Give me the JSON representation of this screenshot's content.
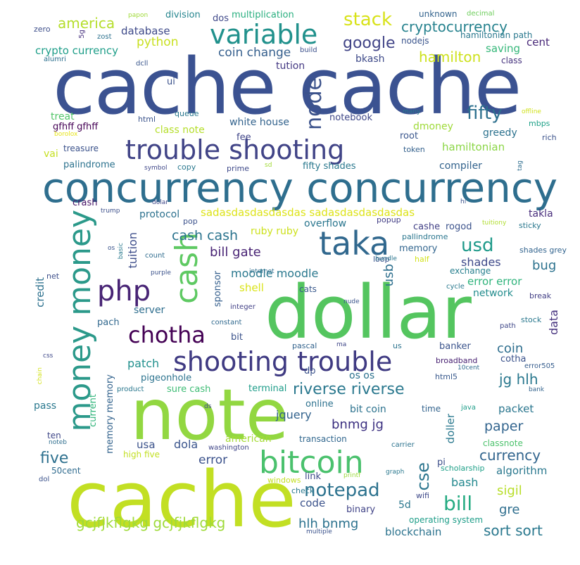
{
  "words": [
    {
      "text": "cache cache",
      "color": "#3b5291"
    },
    {
      "text": "concurrency concurrency",
      "color": "#2e6e8e"
    },
    {
      "text": "dollar",
      "color": "#54c55f"
    },
    {
      "text": "note",
      "color": "#92d741"
    },
    {
      "text": "cache",
      "color": "#c2df23"
    },
    {
      "text": "trouble shooting",
      "color": "#414487"
    },
    {
      "text": "shooting trouble",
      "color": "#3f3a82"
    },
    {
      "text": "variable",
      "color": "#21918c"
    },
    {
      "text": "money money",
      "color": "#2b998a"
    },
    {
      "text": "taka",
      "color": "#31688e"
    },
    {
      "text": "php",
      "color": "#482475"
    },
    {
      "text": "cash",
      "color": "#5ec962"
    },
    {
      "text": "bitcoin",
      "color": "#4ac16d"
    },
    {
      "text": "chotha",
      "color": "#440154"
    },
    {
      "text": "note",
      "color": "#2c728e"
    },
    {
      "text": "node",
      "color": "#3b528b"
    },
    {
      "text": "stack",
      "color": "#d8e219"
    },
    {
      "text": "cryptocurrency",
      "color": "#26828e"
    },
    {
      "text": "google",
      "color": "#414487"
    },
    {
      "text": "hamilton",
      "color": "#cde11d"
    },
    {
      "text": "america",
      "color": "#b5de2b"
    },
    {
      "text": "database",
      "color": "#3e4a89"
    },
    {
      "text": "python",
      "color": "#c8e020"
    },
    {
      "text": "crypto currency",
      "color": "#1f9e89"
    },
    {
      "text": "coin change",
      "color": "#355f8d"
    },
    {
      "text": "bkash",
      "color": "#3e4a89"
    },
    {
      "text": "tution",
      "color": "#443983"
    },
    {
      "text": "saving",
      "color": "#35b779"
    },
    {
      "text": "cent",
      "color": "#482878"
    },
    {
      "text": "division",
      "color": "#25858e"
    },
    {
      "text": "dos",
      "color": "#3f4889"
    },
    {
      "text": "multiplication",
      "color": "#29af7f"
    },
    {
      "text": "unknown",
      "color": "#33638d"
    },
    {
      "text": "decimal",
      "color": "#6ccd5a"
    },
    {
      "text": "hamiltonian path",
      "color": "#2a788e"
    },
    {
      "text": "nodejs",
      "color": "#3a548c"
    },
    {
      "text": "class",
      "color": "#46337e"
    },
    {
      "text": "papon",
      "color": "#a0da39"
    },
    {
      "text": "zero",
      "color": "#3d4e8a"
    },
    {
      "text": "zost",
      "color": "#2c718e"
    },
    {
      "text": "5g",
      "color": "#46307e"
    },
    {
      "text": "build",
      "color": "#3c508b"
    },
    {
      "text": "alumri",
      "color": "#2d708e"
    },
    {
      "text": "dcll",
      "color": "#39568c"
    },
    {
      "text": "ui",
      "color": "#3b528b"
    },
    {
      "text": "fifty",
      "color": "#2d708e"
    },
    {
      "text": "treat",
      "color": "#52c569"
    },
    {
      "text": "gfhff gfhff",
      "color": "#440154"
    },
    {
      "text": "html",
      "color": "#3a538b"
    },
    {
      "text": "queue",
      "color": "#2a788e"
    },
    {
      "text": "class note",
      "color": "#b5de2b"
    },
    {
      "text": "white house",
      "color": "#33638d"
    },
    {
      "text": "notebook",
      "color": "#3f4788"
    },
    {
      "text": "dmoney",
      "color": "#9fda3a"
    },
    {
      "text": "many",
      "color": "#287c8e"
    },
    {
      "text": "offline",
      "color": "#d0e11c"
    },
    {
      "text": "mbps",
      "color": "#1fa188"
    },
    {
      "text": "greedy",
      "color": "#2c728e"
    },
    {
      "text": "rich",
      "color": "#3b528b"
    },
    {
      "text": "borolox",
      "color": "#e7e419"
    },
    {
      "text": "fee",
      "color": "#404588"
    },
    {
      "text": "root",
      "color": "#39558c"
    },
    {
      "text": "token",
      "color": "#34618d"
    },
    {
      "text": "hamiltonian",
      "color": "#8bd646"
    },
    {
      "text": "treasure",
      "color": "#3b528b"
    },
    {
      "text": "vai",
      "color": "#c5e021"
    },
    {
      "text": "palindrome",
      "color": "#2c728e"
    },
    {
      "text": "symbol",
      "color": "#3f4788"
    },
    {
      "text": "copy",
      "color": "#2a788e"
    },
    {
      "text": "prime",
      "color": "#3e4989"
    },
    {
      "text": "sd",
      "color": "#a2da37"
    },
    {
      "text": "fifty shades",
      "color": "#2a788e"
    },
    {
      "text": "compiler",
      "color": "#33638d"
    },
    {
      "text": "tag",
      "color": "#2e6d8e"
    },
    {
      "text": "crash",
      "color": "#481668"
    },
    {
      "text": "dolar",
      "color": "#3f4788"
    },
    {
      "text": "hi",
      "color": "#3b528b"
    },
    {
      "text": "trump",
      "color": "#3c4f8a"
    },
    {
      "text": "protocol",
      "color": "#2c718e"
    },
    {
      "text": "sadasdasdasdasdas sadasdasdasdasdas",
      "color": "#dde318"
    },
    {
      "text": "takla",
      "color": "#472d7b"
    },
    {
      "text": "pop",
      "color": "#3b518b"
    },
    {
      "text": "overflow",
      "color": "#2a768e"
    },
    {
      "text": "popup",
      "color": "#433e85"
    },
    {
      "text": "cashe",
      "color": "#424186"
    },
    {
      "text": "rogod",
      "color": "#3b528b"
    },
    {
      "text": "tuitiony",
      "color": "#b0dd2f"
    },
    {
      "text": "sticky",
      "color": "#2a788e"
    },
    {
      "text": "cash cash",
      "color": "#2b748e"
    },
    {
      "text": "ruby ruby",
      "color": "#cde11d"
    },
    {
      "text": "pallindrome",
      "color": "#2a768e"
    },
    {
      "text": "usd",
      "color": "#1f9a8a"
    },
    {
      "text": "bill gate",
      "color": "#482374"
    },
    {
      "text": "memory",
      "color": "#32658e"
    },
    {
      "text": "tuition",
      "color": "#3d4d8a"
    },
    {
      "text": "os",
      "color": "#3a548c"
    },
    {
      "text": "basic",
      "color": "#29798e"
    },
    {
      "text": "count",
      "color": "#2f6c8e"
    },
    {
      "text": "loop",
      "color": "#3a548c"
    },
    {
      "text": "bundle",
      "color": "#2b758e"
    },
    {
      "text": "half",
      "color": "#d2e21b"
    },
    {
      "text": "shades grey",
      "color": "#32648e"
    },
    {
      "text": "purple",
      "color": "#3b528b"
    },
    {
      "text": "moodle moodle",
      "color": "#2a788e"
    },
    {
      "text": "shades",
      "color": "#3e4989"
    },
    {
      "text": "bug",
      "color": "#2c728e"
    },
    {
      "text": "exchange",
      "color": "#277f8e"
    },
    {
      "text": "internet",
      "color": "#2e6e8e"
    },
    {
      "text": "net",
      "color": "#3d4e8a"
    },
    {
      "text": "sponsor",
      "color": "#355f8d"
    },
    {
      "text": "credit",
      "color": "#2d718e"
    },
    {
      "text": "shell",
      "color": "#dae319"
    },
    {
      "text": "cats",
      "color": "#38588c"
    },
    {
      "text": "usb",
      "color": "#2e6f8e"
    },
    {
      "text": "error error",
      "color": "#2fb47c"
    },
    {
      "text": "cycle",
      "color": "#29798e"
    },
    {
      "text": "network",
      "color": "#228c8d"
    },
    {
      "text": "break",
      "color": "#423f85"
    },
    {
      "text": "server",
      "color": "#2e6e8e"
    },
    {
      "text": "integer",
      "color": "#424086"
    },
    {
      "text": "nude",
      "color": "#3a548c"
    },
    {
      "text": "data",
      "color": "#46327e"
    },
    {
      "text": "pach",
      "color": "#31688e"
    },
    {
      "text": "constant",
      "color": "#30698e"
    },
    {
      "text": "path",
      "color": "#3f4788"
    },
    {
      "text": "stock",
      "color": "#2a788e"
    },
    {
      "text": "bit",
      "color": "#3b528b"
    },
    {
      "text": "pascal",
      "color": "#33638d"
    },
    {
      "text": "ma",
      "color": "#3f4788"
    },
    {
      "text": "us",
      "color": "#2c738e"
    },
    {
      "text": "banker",
      "color": "#3a538b"
    },
    {
      "text": "coin",
      "color": "#2e6e8e"
    },
    {
      "text": "cotha",
      "color": "#3b528b"
    },
    {
      "text": "patch",
      "color": "#21908d"
    },
    {
      "text": "broadband",
      "color": "#482172"
    },
    {
      "text": "10cent",
      "color": "#2f6b8e"
    },
    {
      "text": "error505",
      "color": "#365d8d"
    },
    {
      "text": "css",
      "color": "#3f4889"
    },
    {
      "text": "pigeonhole",
      "color": "#2c738e"
    },
    {
      "text": "dp",
      "color": "#3b528b"
    },
    {
      "text": "memory memory",
      "color": "#33638d"
    },
    {
      "text": "os os",
      "color": "#2c728e"
    },
    {
      "text": "html5",
      "color": "#38588c"
    },
    {
      "text": "jg hlh",
      "color": "#2a788e"
    },
    {
      "text": "bank",
      "color": "#33638d"
    },
    {
      "text": "chain",
      "color": "#d2e21b"
    },
    {
      "text": "product",
      "color": "#2a778e"
    },
    {
      "text": "sure cash",
      "color": "#3dbc74"
    },
    {
      "text": "terminal",
      "color": "#1f9d8a"
    },
    {
      "text": "riverse riverse",
      "color": "#2a788e"
    },
    {
      "text": "online",
      "color": "#2d718e"
    },
    {
      "text": "time",
      "color": "#33638d"
    },
    {
      "text": "java",
      "color": "#1e9d89"
    },
    {
      "text": "packet",
      "color": "#2a768e"
    },
    {
      "text": "pass",
      "color": "#2a788e"
    },
    {
      "text": "current",
      "color": "#31b57b"
    },
    {
      "text": "ds",
      "color": "#3f4788"
    },
    {
      "text": "jquery",
      "color": "#33638d"
    },
    {
      "text": "bit coin",
      "color": "#2c728e"
    },
    {
      "text": "bnmg jg",
      "color": "#3b2f80"
    },
    {
      "text": "doller",
      "color": "#2a788e"
    },
    {
      "text": "paper",
      "color": "#32648e"
    },
    {
      "text": "ten",
      "color": "#3f4788"
    },
    {
      "text": "noteb",
      "color": "#2e6e8e"
    },
    {
      "text": "usa",
      "color": "#3b528b"
    },
    {
      "text": "dola",
      "color": "#3a548c"
    },
    {
      "text": "american",
      "color": "#a5db36"
    },
    {
      "text": "washington",
      "color": "#404688"
    },
    {
      "text": "transaction",
      "color": "#31678e"
    },
    {
      "text": "carrier",
      "color": "#2c738e"
    },
    {
      "text": "classnote",
      "color": "#4cc26c"
    },
    {
      "text": "five",
      "color": "#2d708e"
    },
    {
      "text": "high five",
      "color": "#c2df23"
    },
    {
      "text": "error",
      "color": "#3b528b"
    },
    {
      "text": "50cent",
      "color": "#2f6b8e"
    },
    {
      "text": "cse",
      "color": "#2b758e"
    },
    {
      "text": "currency",
      "color": "#32658e"
    },
    {
      "text": "pi",
      "color": "#3c4f8a"
    },
    {
      "text": "scholarship",
      "color": "#1fa088"
    },
    {
      "text": "algorithm",
      "color": "#2a788e"
    },
    {
      "text": "notepad",
      "color": "#2c728e"
    },
    {
      "text": "graph",
      "color": "#2a788e"
    },
    {
      "text": "dol",
      "color": "#3b528b"
    },
    {
      "text": "link",
      "color": "#3e4989"
    },
    {
      "text": "windows",
      "color": "#c2df23"
    },
    {
      "text": "printf",
      "color": "#9bd93c"
    },
    {
      "text": "bash",
      "color": "#23888e"
    },
    {
      "text": "check",
      "color": "#2a788e"
    },
    {
      "text": "bill",
      "color": "#25ab82"
    },
    {
      "text": "sigil",
      "color": "#b8de29"
    },
    {
      "text": "code",
      "color": "#3b528b"
    },
    {
      "text": "binary",
      "color": "#414487"
    },
    {
      "text": "wifi",
      "color": "#3e4989"
    },
    {
      "text": "gre",
      "color": "#2e6e8e"
    },
    {
      "text": "5d",
      "color": "#2a778e"
    },
    {
      "text": "gcjfjkflgkg gcjfjkflgkg",
      "color": "#9fda3a"
    },
    {
      "text": "hlh bnmg",
      "color": "#2c728e"
    },
    {
      "text": "operating system",
      "color": "#1f9e89"
    },
    {
      "text": "sort sort",
      "color": "#2a788e"
    },
    {
      "text": "blockchain",
      "color": "#2c738e"
    },
    {
      "text": "multiple",
      "color": "#3b528b"
    }
  ]
}
